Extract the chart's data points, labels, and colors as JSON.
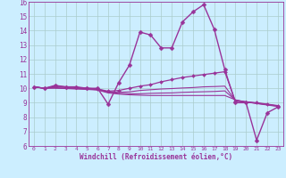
{
  "background_color": "#cceeff",
  "line_color": "#993399",
  "grid_color": "#aacccc",
  "xlabel": "Windchill (Refroidissement éolien,°C)",
  "xlim": [
    -0.5,
    23.5
  ],
  "ylim": [
    6,
    16
  ],
  "xticks": [
    0,
    1,
    2,
    3,
    4,
    5,
    6,
    7,
    8,
    9,
    10,
    11,
    12,
    13,
    14,
    15,
    16,
    17,
    18,
    19,
    20,
    21,
    22,
    23
  ],
  "yticks": [
    6,
    7,
    8,
    9,
    10,
    11,
    12,
    13,
    14,
    15,
    16
  ],
  "lines": [
    {
      "x": [
        0,
        1,
        2,
        3,
        4,
        5,
        6,
        7,
        8,
        9,
        10,
        11,
        12,
        13,
        14,
        15,
        16,
        17,
        18,
        19,
        20,
        21,
        22,
        23
      ],
      "y": [
        10.1,
        10.0,
        10.2,
        10.1,
        10.1,
        10.0,
        10.0,
        8.9,
        10.4,
        11.6,
        13.9,
        13.7,
        12.8,
        12.8,
        14.6,
        15.3,
        15.8,
        14.1,
        11.3,
        9.0,
        9.0,
        6.4,
        8.3,
        8.7
      ],
      "marker": "D",
      "markersize": 2.5,
      "linewidth": 1.0,
      "has_markers": true
    },
    {
      "x": [
        0,
        1,
        2,
        3,
        4,
        5,
        6,
        7,
        8,
        9,
        10,
        11,
        12,
        13,
        14,
        15,
        16,
        17,
        18,
        19,
        20,
        21,
        22,
        23
      ],
      "y": [
        10.1,
        10.0,
        10.15,
        10.1,
        10.05,
        10.0,
        9.95,
        9.8,
        9.85,
        10.0,
        10.15,
        10.25,
        10.45,
        10.6,
        10.75,
        10.85,
        10.95,
        11.05,
        11.15,
        9.1,
        9.05,
        9.0,
        8.9,
        8.8
      ],
      "marker": "D",
      "markersize": 2.0,
      "linewidth": 0.9,
      "has_markers": true
    },
    {
      "x": [
        0,
        1,
        2,
        3,
        4,
        5,
        6,
        7,
        8,
        9,
        10,
        11,
        12,
        13,
        14,
        15,
        16,
        17,
        18,
        19,
        20,
        21,
        22,
        23
      ],
      "y": [
        10.1,
        10.0,
        10.1,
        10.05,
        10.0,
        10.0,
        9.95,
        9.75,
        9.72,
        9.75,
        9.85,
        9.9,
        9.95,
        9.98,
        10.02,
        10.05,
        10.1,
        10.12,
        10.15,
        9.15,
        9.05,
        8.98,
        8.88,
        8.78
      ],
      "marker": null,
      "markersize": 0,
      "linewidth": 0.8,
      "has_markers": false
    },
    {
      "x": [
        0,
        1,
        2,
        3,
        4,
        5,
        6,
        7,
        8,
        9,
        10,
        11,
        12,
        13,
        14,
        15,
        16,
        17,
        18,
        19,
        20,
        21,
        22,
        23
      ],
      "y": [
        10.1,
        10.0,
        10.05,
        10.0,
        9.98,
        9.95,
        9.9,
        9.72,
        9.65,
        9.62,
        9.62,
        9.65,
        9.67,
        9.68,
        9.72,
        9.74,
        9.76,
        9.78,
        9.82,
        9.18,
        9.05,
        8.96,
        8.86,
        8.76
      ],
      "marker": null,
      "markersize": 0,
      "linewidth": 0.8,
      "has_markers": false
    },
    {
      "x": [
        0,
        1,
        2,
        3,
        4,
        5,
        6,
        7,
        8,
        9,
        10,
        11,
        12,
        13,
        14,
        15,
        16,
        17,
        18,
        19,
        20,
        21,
        22,
        23
      ],
      "y": [
        10.1,
        10.0,
        10.0,
        9.98,
        9.95,
        9.92,
        9.88,
        9.68,
        9.6,
        9.55,
        9.52,
        9.5,
        9.5,
        9.5,
        9.5,
        9.5,
        9.5,
        9.5,
        9.5,
        9.2,
        9.05,
        8.94,
        8.84,
        8.74
      ],
      "marker": null,
      "markersize": 0,
      "linewidth": 0.8,
      "has_markers": false
    }
  ]
}
